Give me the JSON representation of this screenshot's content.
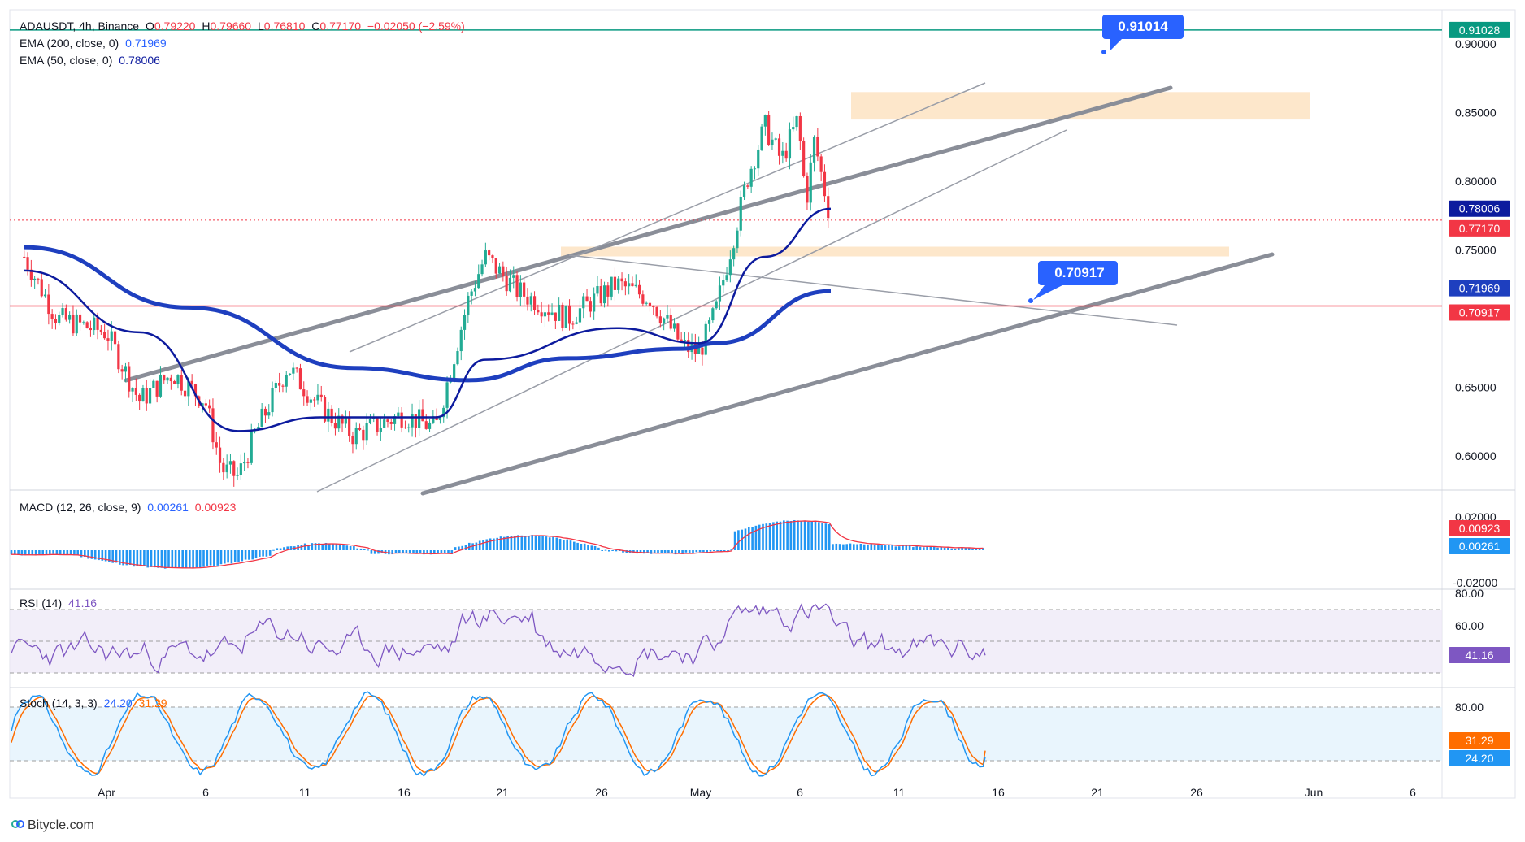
{
  "header": {
    "symbol": "ADAUSDT, 4h, Binance",
    "o_label": "O",
    "o_value": "0.79220",
    "h_label": "H",
    "h_value": "0.79660",
    "l_label": "L",
    "l_value": "0.76810",
    "c_label": "C",
    "c_value": "0.77170",
    "change": "−0.02050 (−2.59%)",
    "ema200_label": "EMA (200, close, 0)",
    "ema200_value": "0.71969",
    "ema50_label": "EMA (50, close, 0)",
    "ema50_value": "0.78006"
  },
  "macd": {
    "label": "MACD (12, 26, close, 9)",
    "hist_value": "0.00261",
    "signal_value": "0.00923"
  },
  "rsi": {
    "label": "RSI (14)",
    "value": "41.16"
  },
  "stoch": {
    "label": "Stoch (14, 3, 3)",
    "k_value": "24.20",
    "d_value": "31.29"
  },
  "callouts": {
    "top": "0.91014",
    "mid": "0.70917"
  },
  "price_badges": {
    "b1": "0.91028",
    "b2": "0.78006",
    "b3": "0.77170",
    "b4": "0.71969",
    "b5": "0.70917"
  },
  "indicator_badges": {
    "macd_signal": "0.00923",
    "macd_hist": "0.00261",
    "rsi": "41.16",
    "stoch_d": "31.29",
    "stoch_k": "24.20"
  },
  "footer": {
    "brand": "Bitycle.com"
  },
  "colors": {
    "up": "#22ab94",
    "down": "#f23645",
    "ema200": "#1e3fbf",
    "ema50": "#0d1b9e",
    "zone": "#fde3c2",
    "macd_hist": "#2196f3",
    "macd_signal": "#f23645",
    "rsi": "#7e57c2",
    "stoch_k": "#2196f3",
    "stoch_d": "#ff6d00"
  },
  "chart_data": [
    {
      "type": "candlestick",
      "title": "ADAUSDT, 4h, Binance",
      "y_axis": {
        "range": [
          0.575,
          0.925
        ],
        "ticks": [
          "0.90000",
          "0.85000",
          "0.80000",
          "0.75000",
          "0.65000",
          "0.60000"
        ]
      },
      "x_axis": {
        "ticks": [
          "Apr",
          "6",
          "11",
          "16",
          "21",
          "26",
          "May",
          "6",
          "11",
          "16",
          "21",
          "26",
          "Jun",
          "6"
        ]
      },
      "path_points": [
        {
          "t": "Mar 27",
          "price": 0.745
        },
        {
          "t": "Mar 29",
          "price": 0.7
        },
        {
          "t": "Apr 1",
          "price": 0.69
        },
        {
          "t": "Apr 3",
          "price": 0.64
        },
        {
          "t": "Apr 5",
          "price": 0.66
        },
        {
          "t": "Apr 7",
          "price": 0.64
        },
        {
          "t": "Apr 8",
          "price": 0.59
        },
        {
          "t": "Apr 9",
          "price": 0.585
        },
        {
          "t": "Apr 10",
          "price": 0.615
        },
        {
          "t": "Apr 12",
          "price": 0.665
        },
        {
          "t": "Apr 14",
          "price": 0.635
        },
        {
          "t": "Apr 16",
          "price": 0.615
        },
        {
          "t": "Apr 19",
          "price": 0.63
        },
        {
          "t": "Apr 21",
          "price": 0.62
        },
        {
          "t": "Apr 23",
          "price": 0.715
        },
        {
          "t": "Apr 24",
          "price": 0.745
        },
        {
          "t": "Apr 26",
          "price": 0.72
        },
        {
          "t": "Apr 29",
          "price": 0.7
        },
        {
          "t": "May 2",
          "price": 0.725
        },
        {
          "t": "May 4",
          "price": 0.715
        },
        {
          "t": "May 6",
          "price": 0.68
        },
        {
          "t": "May 7",
          "price": 0.675
        },
        {
          "t": "May 8",
          "price": 0.705
        },
        {
          "t": "May 9",
          "price": 0.755
        },
        {
          "t": "May 10",
          "price": 0.805
        },
        {
          "t": "May 11",
          "price": 0.84
        },
        {
          "t": "May 12",
          "price": 0.815
        },
        {
          "t": "May 13",
          "price": 0.845
        },
        {
          "t": "May 13 pm",
          "price": 0.785
        },
        {
          "t": "May 14",
          "price": 0.83
        },
        {
          "t": "May 15",
          "price": 0.771
        }
      ],
      "ema200_points": [
        {
          "t": "Mar 27",
          "price": 0.752
        },
        {
          "t": "Apr 6",
          "price": 0.708
        },
        {
          "t": "Apr 16",
          "price": 0.664
        },
        {
          "t": "Apr 23",
          "price": 0.655
        },
        {
          "t": "Apr 29",
          "price": 0.671
        },
        {
          "t": "May 6",
          "price": 0.678
        },
        {
          "t": "May 8",
          "price": 0.682
        },
        {
          "t": "May 15",
          "price": 0.72
        }
      ],
      "ema50_points": [
        {
          "t": "Mar 27",
          "price": 0.735
        },
        {
          "t": "Apr 3",
          "price": 0.69
        },
        {
          "t": "Apr 9",
          "price": 0.618
        },
        {
          "t": "Apr 14",
          "price": 0.628
        },
        {
          "t": "Apr 21",
          "price": 0.628
        },
        {
          "t": "Apr 24",
          "price": 0.67
        },
        {
          "t": "May 2",
          "price": 0.693
        },
        {
          "t": "May 7",
          "price": 0.682
        },
        {
          "t": "May 11",
          "price": 0.745
        },
        {
          "t": "May 15",
          "price": 0.78
        }
      ],
      "horizontal_levels": [
        0.91028,
        0.70917
      ],
      "zones": [
        {
          "from": 0.845,
          "to": 0.865,
          "label": ""
        },
        {
          "from": 0.743,
          "to": 0.75,
          "label": ""
        }
      ]
    },
    {
      "type": "bar",
      "title": "MACD (12, 26, close, 9)",
      "series": [
        {
          "name": "Histogram",
          "values": [
            0.0026
          ]
        },
        {
          "name": "Signal",
          "values": [
            0.0092
          ]
        }
      ],
      "y_axis": {
        "ticks": [
          "0.02000",
          "-0.02000"
        ]
      }
    },
    {
      "type": "line",
      "title": "RSI (14)",
      "last_value": 41.16,
      "band": [
        30,
        70
      ],
      "y_axis": {
        "ticks": [
          "80.00",
          "60.00"
        ]
      }
    },
    {
      "type": "line",
      "title": "Stoch (14, 3, 3)",
      "series": [
        {
          "name": "%K",
          "last_value": 24.2
        },
        {
          "name": "%D",
          "last_value": 31.29
        }
      ],
      "band": [
        20,
        80
      ],
      "y_axis": {
        "ticks": [
          "80.00"
        ]
      }
    }
  ]
}
